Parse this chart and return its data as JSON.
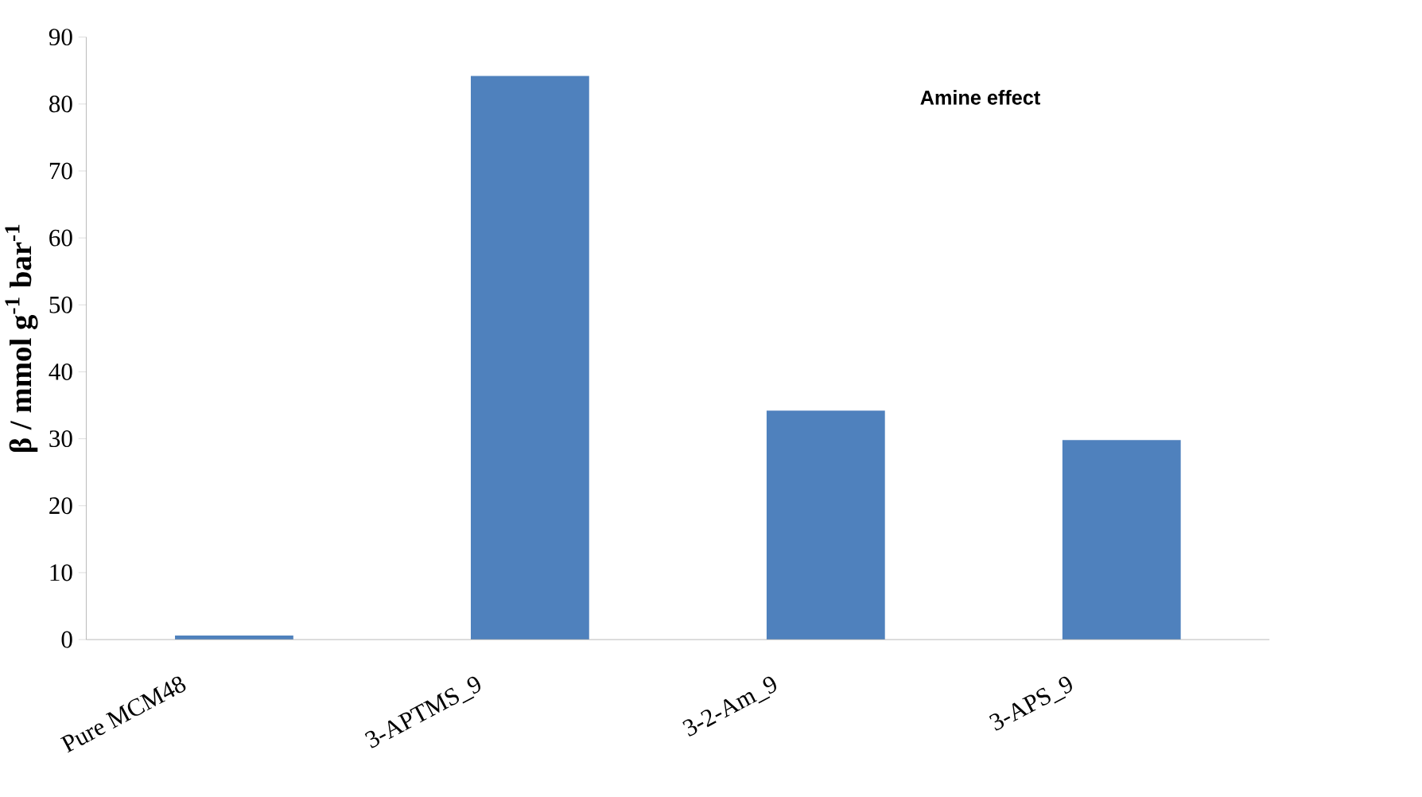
{
  "chart_data": {
    "type": "bar",
    "categories": [
      "Pure MCM48",
      "3-APTMS_9",
      "3-2-Am_9",
      "3-APS_9"
    ],
    "values": [
      0.6,
      84.2,
      34.2,
      29.8
    ],
    "color": "#4f81bd",
    "ylabel": "β / mmol g$^{-1}$ bar$^{-1}$",
    "annotations": [
      "Amine effect"
    ],
    "ylim": [
      0,
      90
    ],
    "yticks": [
      0,
      10,
      20,
      30,
      40,
      50,
      60,
      70,
      80,
      90
    ],
    "grid": false
  }
}
